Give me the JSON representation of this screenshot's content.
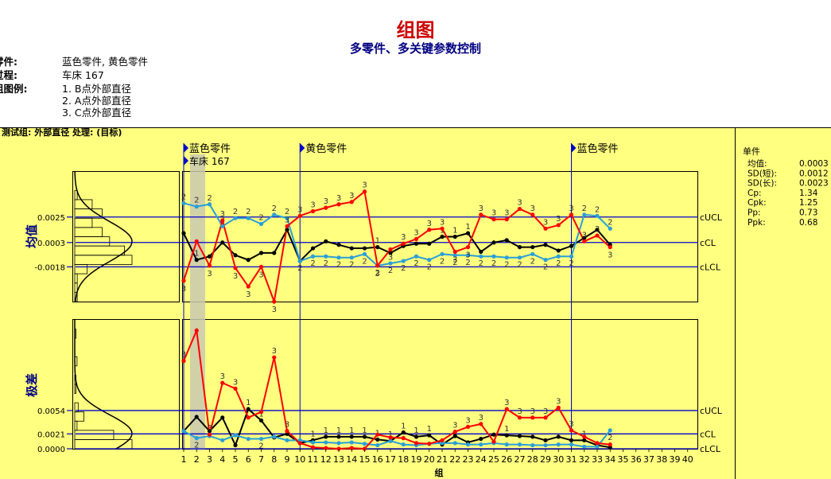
{
  "header": {
    "title": "组图",
    "subtitle": "多零件、多关键参数控制"
  },
  "info": {
    "part_label": "零件:",
    "part_value": "蓝色零件, 黄色零件",
    "process_label": "过程:",
    "process_value": "车床 167",
    "legend_label": "组图例:",
    "legend_items": [
      "1. B点外部直径",
      "2. A点外部直径",
      "3. C点外部直径"
    ]
  },
  "chart_header": "测试组: 外部直径 处理: (目标)",
  "segments": [
    {
      "label": "蓝色零件",
      "at": 1
    },
    {
      "label": "黄色零件",
      "at": 10
    },
    {
      "label": "蓝色零件",
      "at": 31
    }
  ],
  "process_marker": {
    "label": "车床 167",
    "at": 1
  },
  "stats": {
    "title": "单件",
    "rows": [
      {
        "k": "均值:",
        "v": "0.0003"
      },
      {
        "k": "SD(短):",
        "v": "0.0012"
      },
      {
        "k": "SD(长):",
        "v": "0.0023"
      },
      {
        "k": "Cp:",
        "v": "1.34"
      },
      {
        "k": "Cpk:",
        "v": "1.25"
      },
      {
        "k": "Pp:",
        "v": "0.73"
      },
      {
        "k": "Ppk:",
        "v": "0.68"
      }
    ]
  },
  "colors": {
    "series1": "#000000",
    "series2": "#2a9fd6",
    "series3": "#ff0000",
    "limit": "#0000cc",
    "background": "#ffff80",
    "highlight": "#c8c8b0"
  },
  "chart_data": [
    {
      "type": "line",
      "ylabel": "均值",
      "yticks": [
        0.0025,
        0.0003,
        -0.0018
      ],
      "ytick_labels": [
        "0.0025",
        "0.0003",
        "-0.0018"
      ],
      "ylim": [
        -0.0048,
        0.0064
      ],
      "limits": {
        "cUCL": 0.0025,
        "cCL": 0.0003,
        "cLCL": -0.0018
      },
      "limit_labels": [
        "cUCL",
        "cCL",
        "cLCL"
      ],
      "series": [
        {
          "x": [
            1,
            2,
            3,
            4,
            5,
            6,
            7,
            8,
            9,
            10,
            11,
            12,
            13,
            14,
            15,
            16,
            17,
            18,
            19,
            20,
            21,
            22,
            23,
            24,
            25,
            26,
            27,
            28,
            29,
            30,
            31,
            32,
            33,
            34
          ],
          "values": [
            0.0011,
            -0.0012,
            -0.0009,
            0.0003,
            -0.0008,
            -0.0012,
            -0.0006,
            -0.0006,
            0.0014,
            -0.0013,
            -0.0002,
            0.0004,
            0.0001,
            -0.0002,
            -0.0002,
            -0.0001,
            -0.0006,
            0.0,
            0.0002,
            0.0002,
            0.0008,
            0.0008,
            0.0011,
            -0.0005,
            0.0003,
            0.0005,
            -0.0001,
            -0.0001,
            0.0001,
            -0.0004,
            0.0,
            0.0007,
            0.0014,
            0.0001
          ],
          "labels": [
            "",
            "1",
            "",
            "",
            "",
            "",
            "",
            "",
            "",
            "",
            "",
            "",
            "",
            "",
            "",
            "1",
            "",
            "",
            "",
            "",
            "1",
            "1",
            "1",
            "",
            "",
            "",
            "",
            "",
            "",
            "",
            "",
            "",
            "",
            ""
          ]
        },
        {
          "x": [
            1,
            2,
            3,
            4,
            5,
            6,
            7,
            8,
            9,
            10,
            11,
            12,
            13,
            14,
            15,
            16,
            17,
            18,
            19,
            20,
            21,
            22,
            23,
            24,
            25,
            26,
            27,
            28,
            29,
            30,
            31,
            32,
            33,
            34
          ],
          "values": [
            0.0037,
            0.0034,
            0.0036,
            0.0017,
            0.0024,
            0.0024,
            0.0019,
            0.0027,
            0.0024,
            -0.0013,
            -0.0009,
            -0.0009,
            -0.001,
            -0.001,
            -0.0007,
            -0.0017,
            -0.0015,
            -0.0013,
            -0.0009,
            -0.0012,
            -0.0007,
            -0.0008,
            -0.0008,
            -0.0009,
            -0.0009,
            -0.001,
            -0.001,
            -0.0007,
            -0.0012,
            -0.0009,
            -0.0009,
            0.0027,
            0.0026,
            0.0015
          ],
          "labels": [
            "2",
            "2",
            "2",
            "2",
            "2",
            "2",
            "2",
            "2",
            "2",
            "2",
            "2",
            "2",
            "2",
            "2",
            "2",
            "2",
            "2",
            "2",
            "2",
            "2",
            "2",
            "2",
            "2",
            "2",
            "2",
            "2",
            "2",
            "2",
            "2",
            "2",
            "2",
            "2",
            "2",
            "2"
          ]
        },
        {
          "x": [
            1,
            2,
            3,
            4,
            5,
            6,
            7,
            8,
            9,
            10,
            11,
            12,
            13,
            14,
            15,
            16,
            17,
            18,
            19,
            20,
            21,
            22,
            23,
            24,
            25,
            26,
            27,
            28,
            29,
            30,
            31,
            32,
            33,
            34
          ],
          "values": [
            -0.003,
            0.0004,
            -0.0017,
            0.0022,
            -0.0019,
            -0.0035,
            -0.0018,
            -0.0048,
            0.0017,
            0.0026,
            0.003,
            0.0033,
            0.0036,
            0.0038,
            0.0047,
            -0.0017,
            -0.0003,
            0.0002,
            0.0006,
            0.0014,
            0.0015,
            -0.0005,
            -0.0001,
            0.0027,
            0.0023,
            0.0023,
            0.0032,
            0.0027,
            0.0015,
            0.0018,
            0.0027,
            0.0004,
            0.0009,
            -0.0001
          ],
          "labels": [
            "3",
            "",
            "3",
            "3",
            "3",
            "3",
            "3",
            "3",
            "3",
            "3",
            "3",
            "3",
            "3",
            "3",
            "3",
            "3",
            "3",
            "3",
            "3",
            "3",
            "3",
            "3",
            "3",
            "3",
            "3",
            "3",
            "3",
            "3",
            "3",
            "3",
            "3",
            "3",
            "3",
            "3"
          ]
        }
      ]
    },
    {
      "type": "line",
      "ylabel": "极差",
      "yticks": [
        0.0054,
        0.0021,
        0.0
      ],
      "ytick_labels": [
        "0.0054",
        "0.0021",
        "0.0000"
      ],
      "ylim": [
        0.0,
        0.0182
      ],
      "limits": {
        "cUCL": 0.0054,
        "cCL": 0.0021,
        "cLCL": 0.0
      },
      "limit_labels": [
        "cUCL",
        "cCL",
        "cLCL"
      ],
      "xlabel": "组",
      "xticks": [
        1,
        2,
        3,
        4,
        5,
        6,
        7,
        8,
        9,
        10,
        11,
        12,
        13,
        14,
        15,
        16,
        17,
        18,
        19,
        20,
        21,
        22,
        23,
        24,
        25,
        26,
        27,
        28,
        29,
        30,
        31,
        32,
        33,
        34,
        35,
        36,
        37,
        38,
        39,
        40
      ],
      "series": [
        {
          "x": [
            1,
            2,
            3,
            4,
            5,
            6,
            7,
            8,
            9,
            10,
            11,
            12,
            13,
            14,
            15,
            16,
            17,
            18,
            19,
            20,
            21,
            22,
            23,
            24,
            25,
            26,
            27,
            28,
            29,
            30,
            31,
            32,
            33,
            34
          ],
          "values": [
            0.0025,
            0.0045,
            0.0025,
            0.0044,
            0.0005,
            0.0056,
            0.004,
            0.0016,
            0.0021,
            0.0008,
            0.0012,
            0.0017,
            0.0017,
            0.0017,
            0.0017,
            0.0013,
            0.0011,
            0.0023,
            0.0017,
            0.0019,
            0.0006,
            0.0018,
            0.0009,
            0.0014,
            0.002,
            0.0019,
            0.0018,
            0.0017,
            0.0012,
            0.0017,
            0.0012,
            0.0012,
            0.0005,
            0.0002
          ],
          "labels": [
            "",
            "",
            "",
            "",
            "",
            "1",
            "1",
            "",
            "",
            "",
            "1",
            "1",
            "1",
            "1",
            "1",
            "1",
            "1",
            "1",
            "1",
            "1",
            "",
            "",
            "",
            "",
            "",
            "1",
            "",
            "",
            "",
            "",
            "",
            "1",
            "",
            ""
          ]
        },
        {
          "x": [
            1,
            2,
            3,
            4,
            5,
            6,
            7,
            8,
            9,
            10,
            11,
            12,
            13,
            14,
            15,
            16,
            17,
            18,
            19,
            20,
            21,
            22,
            23,
            24,
            25,
            26,
            27,
            28,
            29,
            30,
            31,
            32,
            33,
            34
          ],
          "values": [
            0.0025,
            0.0015,
            0.0018,
            0.0012,
            0.0019,
            0.0014,
            0.0014,
            0.0017,
            0.0012,
            0.0012,
            0.0009,
            0.0009,
            0.0008,
            0.0009,
            0.0007,
            0.0005,
            0.0011,
            0.0006,
            0.0005,
            0.0007,
            0.0008,
            0.0008,
            0.0006,
            0.0006,
            0.0008,
            0.0006,
            0.0006,
            0.0005,
            0.0005,
            0.0006,
            0.0006,
            0.0003,
            0.0003,
            0.0026
          ],
          "labels": [
            "",
            "2",
            "",
            "",
            "",
            "",
            "2",
            "",
            "",
            "",
            "",
            "",
            "",
            "",
            "",
            "",
            "",
            "",
            "",
            "",
            "",
            "",
            "",
            "",
            "",
            "",
            "",
            "",
            "",
            "",
            "",
            "",
            "",
            "2"
          ]
        },
        {
          "x": [
            1,
            2,
            3,
            4,
            5,
            6,
            7,
            8,
            9,
            10,
            11,
            12,
            13,
            14,
            15,
            16,
            17,
            18,
            19,
            20,
            21,
            22,
            23,
            24,
            25,
            26,
            27,
            28,
            29,
            30,
            31,
            32,
            33,
            34
          ],
          "values": [
            0.0124,
            0.0167,
            0.002,
            0.0093,
            0.0085,
            0.0044,
            0.0052,
            0.0129,
            0.0025,
            0.0008,
            0.0002,
            0.0001,
            0.0,
            0.0001,
            0.0,
            0.002,
            0.0016,
            0.0015,
            0.0008,
            0.0007,
            0.0012,
            0.0024,
            0.0031,
            0.0035,
            0.001,
            0.0056,
            0.0044,
            0.0044,
            0.0044,
            0.0058,
            0.0026,
            0.0017,
            0.0008,
            0.0006
          ],
          "labels": [
            "3",
            "",
            "3",
            "3",
            "3",
            "",
            "",
            "3",
            "3",
            "",
            "",
            "",
            "",
            "",
            "",
            "",
            "",
            "",
            "",
            "",
            "",
            "3",
            "3",
            "3",
            "",
            "3",
            "3",
            "3",
            "3",
            "3",
            "3",
            "",
            "",
            ""
          ]
        }
      ]
    }
  ]
}
